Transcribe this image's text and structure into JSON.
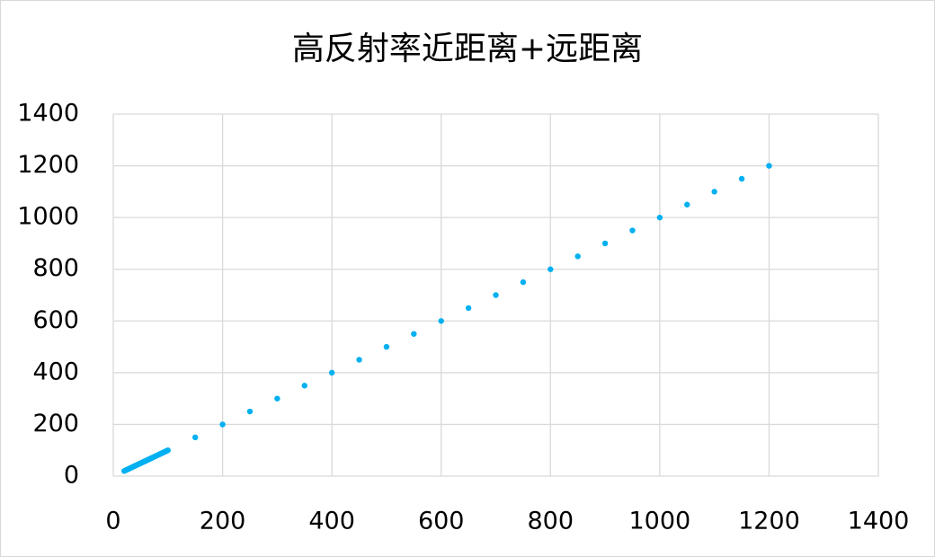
{
  "chart_data": {
    "type": "scatter",
    "title": "高反射率近距离+远距离",
    "x": [
      20,
      22,
      24,
      26,
      28,
      30,
      32,
      34,
      36,
      38,
      40,
      42,
      44,
      46,
      48,
      50,
      52,
      54,
      56,
      58,
      60,
      62,
      64,
      66,
      68,
      70,
      72,
      74,
      76,
      78,
      80,
      82,
      84,
      86,
      88,
      90,
      92,
      94,
      96,
      98,
      100,
      150,
      200,
      250,
      300,
      350,
      400,
      450,
      500,
      550,
      600,
      650,
      700,
      750,
      800,
      850,
      900,
      950,
      1000,
      1050,
      1100,
      1150,
      1200
    ],
    "values": [
      20,
      22,
      24,
      26,
      28,
      30,
      32,
      34,
      36,
      38,
      40,
      42,
      44,
      46,
      48,
      50,
      52,
      54,
      56,
      58,
      60,
      62,
      64,
      66,
      68,
      70,
      72,
      74,
      76,
      78,
      80,
      82,
      84,
      86,
      88,
      90,
      92,
      94,
      96,
      98,
      100,
      150,
      200,
      250,
      300,
      350,
      400,
      450,
      500,
      550,
      600,
      650,
      700,
      750,
      800,
      850,
      900,
      950,
      1000,
      1050,
      1100,
      1150,
      1200
    ],
    "color": "#00b0f0",
    "xlim": [
      0,
      1400
    ],
    "xticks": [
      0,
      200,
      400,
      600,
      800,
      1000,
      1200,
      1400
    ],
    "ylim": [
      0,
      1400
    ],
    "yticks": [
      0,
      200,
      400,
      600,
      800,
      1000,
      1200,
      1400
    ],
    "grid": true
  }
}
